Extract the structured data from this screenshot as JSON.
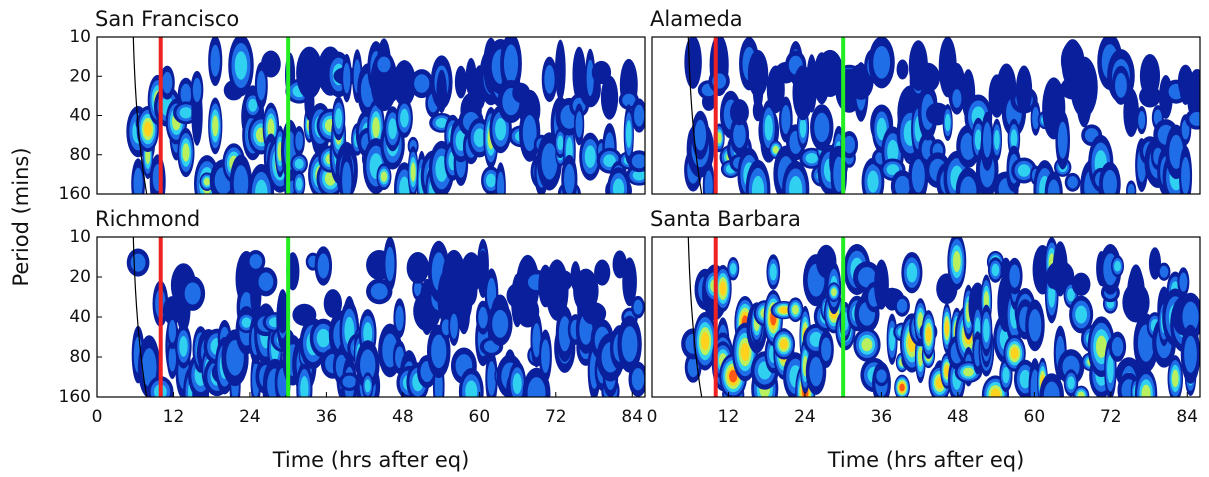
{
  "chart_data": [
    {
      "type": "heatmap",
      "title": "San Francisco",
      "ylabel": "Period (mins)",
      "xlim": [
        0,
        86
      ],
      "ylim": [
        160,
        10
      ],
      "yscale": "log",
      "yticks": [
        10,
        20,
        40,
        80,
        160
      ],
      "vlines": [
        {
          "x": 10,
          "color": "#ee2222"
        },
        {
          "x": 30,
          "color": "#22ee22"
        }
      ]
    },
    {
      "type": "heatmap",
      "title": "Alameda",
      "xlim": [
        0,
        86
      ],
      "ylim": [
        160,
        10
      ],
      "yscale": "log",
      "vlines": [
        {
          "x": 10,
          "color": "#ee2222"
        },
        {
          "x": 30,
          "color": "#22ee22"
        }
      ]
    },
    {
      "type": "heatmap",
      "title": "Richmond",
      "xlabel": "Time (hrs after eq)",
      "xlim": [
        0,
        86
      ],
      "ylim": [
        160,
        10
      ],
      "yscale": "log",
      "yticks": [
        10,
        20,
        40,
        80,
        160
      ],
      "xticks": [
        0,
        12,
        24,
        36,
        48,
        60,
        72,
        84
      ],
      "vlines": [
        {
          "x": 10,
          "color": "#ee2222"
        },
        {
          "x": 30,
          "color": "#22ee22"
        }
      ]
    },
    {
      "type": "heatmap",
      "title": "Santa Barbara",
      "xlabel": "Time (hrs after eq)",
      "xlim": [
        0,
        86
      ],
      "ylim": [
        160,
        10
      ],
      "yscale": "log",
      "xticks": [
        0,
        12,
        24,
        36,
        48,
        60,
        72,
        84
      ],
      "vlines": [
        {
          "x": 10,
          "color": "#ee2222"
        },
        {
          "x": 30,
          "color": "#22ee22"
        }
      ]
    }
  ]
}
